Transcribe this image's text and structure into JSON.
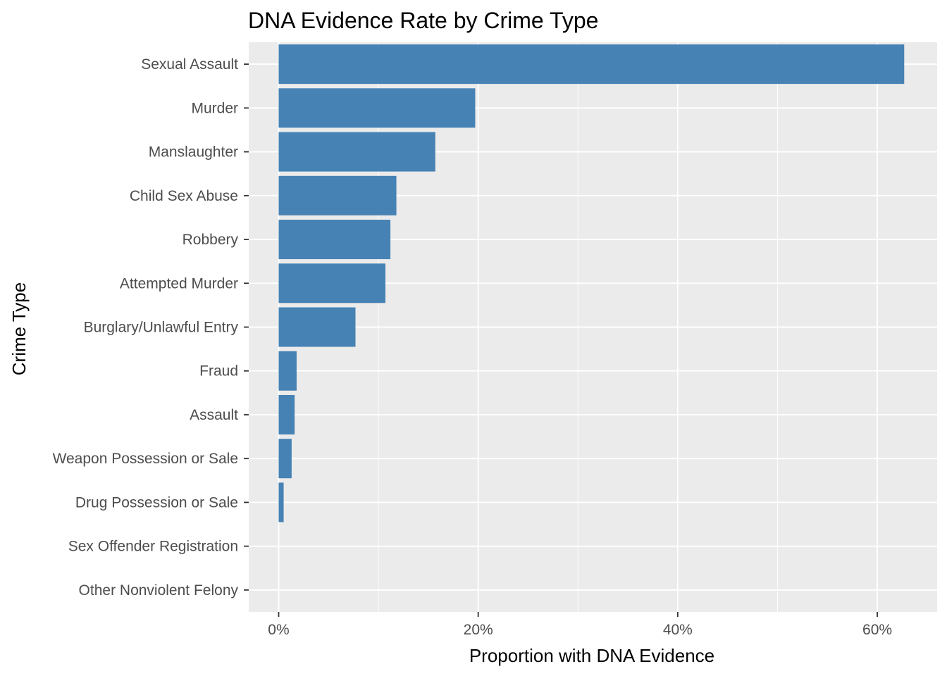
{
  "chart_data": {
    "type": "bar",
    "orientation": "horizontal",
    "title": "DNA Evidence Rate by Crime Type",
    "xlabel": "Proportion with DNA Evidence",
    "ylabel": "Crime Type",
    "categories": [
      "Sexual Assault",
      "Murder",
      "Manslaughter",
      "Child Sex Abuse",
      "Robbery",
      "Attempted Murder",
      "Burglary/Unlawful Entry",
      "Fraud",
      "Assault",
      "Weapon Possession or Sale",
      "Drug Possession or Sale",
      "Sex Offender Registration",
      "Other Nonviolent Felony"
    ],
    "values": [
      0.627,
      0.197,
      0.157,
      0.118,
      0.112,
      0.107,
      0.077,
      0.018,
      0.016,
      0.013,
      0.005,
      0.0,
      0.0
    ],
    "xlim": [
      -0.03,
      0.66
    ],
    "x_ticks": [
      0,
      0.2,
      0.4,
      0.6
    ],
    "x_tick_labels": [
      "0%",
      "20%",
      "40%",
      "60%"
    ],
    "grid": true,
    "legend": "none",
    "bar_color": "#4682b4",
    "panel_background": "#ebebeb",
    "grid_color": "#ffffff"
  }
}
